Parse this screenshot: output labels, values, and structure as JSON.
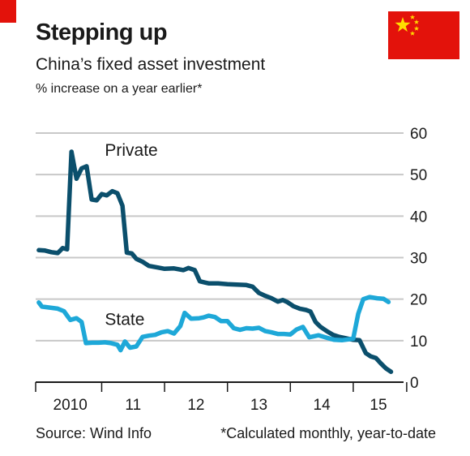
{
  "header": {
    "title": "Stepping up",
    "subtitle": "China’s fixed asset investment",
    "unit_note": "% increase on a year earlier*"
  },
  "flag": {
    "icon": "china-flag-icon",
    "field_color": "#e3120b",
    "star_color": "#ffde00"
  },
  "footer": {
    "source": "Source: Wind Info",
    "note": "*Calculated monthly, year-to-date"
  },
  "chart_data": {
    "type": "line",
    "title": "",
    "xlabel": "",
    "ylabel": "",
    "ylim": [
      0,
      60
    ],
    "xlim": [
      2009.95,
      2015.8
    ],
    "y_ticks": [
      0,
      10,
      20,
      30,
      40,
      50,
      60
    ],
    "x_tick_labels": [
      {
        "label": "2010",
        "x": 2010.5
      },
      {
        "label": "11",
        "x": 2011.5
      },
      {
        "label": "12",
        "x": 2012.5
      },
      {
        "label": "13",
        "x": 2013.5
      },
      {
        "label": "14",
        "x": 2014.5
      },
      {
        "label": "15",
        "x": 2015.4
      }
    ],
    "x_year_boundaries": [
      2011,
      2012,
      2013,
      2014,
      2015,
      2015.85
    ],
    "grid": true,
    "series": [
      {
        "name": "Private",
        "color": "#0b4f6c",
        "label_at": [
          2011.05,
          54.5
        ],
        "points": [
          [
            2010.0,
            31.8
          ],
          [
            2010.1,
            31.7
          ],
          [
            2010.2,
            31.3
          ],
          [
            2010.3,
            31.1
          ],
          [
            2010.38,
            32.3
          ],
          [
            2010.45,
            32.0
          ],
          [
            2010.52,
            55.5
          ],
          [
            2010.6,
            49.0
          ],
          [
            2010.68,
            51.5
          ],
          [
            2010.76,
            52.0
          ],
          [
            2010.84,
            44.0
          ],
          [
            2010.92,
            43.8
          ],
          [
            2011.0,
            45.3
          ],
          [
            2011.08,
            45.0
          ],
          [
            2011.17,
            46.0
          ],
          [
            2011.25,
            45.5
          ],
          [
            2011.33,
            42.5
          ],
          [
            2011.4,
            31.2
          ],
          [
            2011.48,
            31.0
          ],
          [
            2011.55,
            29.7
          ],
          [
            2011.65,
            29.0
          ],
          [
            2011.75,
            28.0
          ],
          [
            2011.9,
            27.6
          ],
          [
            2012.0,
            27.3
          ],
          [
            2012.15,
            27.4
          ],
          [
            2012.3,
            27.0
          ],
          [
            2012.38,
            27.5
          ],
          [
            2012.48,
            27.0
          ],
          [
            2012.56,
            24.3
          ],
          [
            2012.7,
            23.8
          ],
          [
            2012.85,
            23.8
          ],
          [
            2013.0,
            23.6
          ],
          [
            2013.15,
            23.5
          ],
          [
            2013.3,
            23.4
          ],
          [
            2013.4,
            23.0
          ],
          [
            2013.5,
            21.5
          ],
          [
            2013.6,
            20.8
          ],
          [
            2013.7,
            20.2
          ],
          [
            2013.8,
            19.4
          ],
          [
            2013.88,
            19.8
          ],
          [
            2013.95,
            19.3
          ],
          [
            2014.05,
            18.3
          ],
          [
            2014.15,
            17.7
          ],
          [
            2014.25,
            17.4
          ],
          [
            2014.32,
            17.0
          ],
          [
            2014.4,
            14.5
          ],
          [
            2014.48,
            13.3
          ],
          [
            2014.58,
            12.3
          ],
          [
            2014.68,
            11.4
          ],
          [
            2014.78,
            10.9
          ],
          [
            2014.88,
            10.6
          ],
          [
            2015.0,
            10.2
          ],
          [
            2015.1,
            10.1
          ],
          [
            2015.2,
            7.0
          ],
          [
            2015.28,
            6.2
          ],
          [
            2015.36,
            5.8
          ],
          [
            2015.44,
            4.5
          ],
          [
            2015.52,
            3.3
          ],
          [
            2015.6,
            2.5
          ]
        ]
      },
      {
        "name": "State",
        "color": "#1ea8d8",
        "label_at": [
          2011.05,
          13.8
        ],
        "points": [
          [
            2010.0,
            19.2
          ],
          [
            2010.05,
            18.2
          ],
          [
            2010.15,
            18.0
          ],
          [
            2010.3,
            17.7
          ],
          [
            2010.4,
            17.1
          ],
          [
            2010.5,
            15.0
          ],
          [
            2010.6,
            15.4
          ],
          [
            2010.68,
            14.5
          ],
          [
            2010.75,
            9.4
          ],
          [
            2010.85,
            9.5
          ],
          [
            2010.95,
            9.5
          ],
          [
            2011.05,
            9.6
          ],
          [
            2011.15,
            9.4
          ],
          [
            2011.25,
            9.0
          ],
          [
            2011.3,
            7.7
          ],
          [
            2011.37,
            9.8
          ],
          [
            2011.45,
            8.3
          ],
          [
            2011.55,
            8.6
          ],
          [
            2011.65,
            10.9
          ],
          [
            2011.75,
            11.2
          ],
          [
            2011.85,
            11.4
          ],
          [
            2011.95,
            12.0
          ],
          [
            2012.05,
            12.3
          ],
          [
            2012.15,
            11.7
          ],
          [
            2012.25,
            13.5
          ],
          [
            2012.32,
            16.7
          ],
          [
            2012.42,
            15.3
          ],
          [
            2012.55,
            15.4
          ],
          [
            2012.62,
            15.6
          ],
          [
            2012.7,
            16.0
          ],
          [
            2012.8,
            15.7
          ],
          [
            2012.9,
            14.7
          ],
          [
            2013.0,
            14.7
          ],
          [
            2013.1,
            13.0
          ],
          [
            2013.2,
            12.6
          ],
          [
            2013.3,
            13.0
          ],
          [
            2013.4,
            12.9
          ],
          [
            2013.5,
            13.1
          ],
          [
            2013.6,
            12.3
          ],
          [
            2013.7,
            12.0
          ],
          [
            2013.8,
            11.6
          ],
          [
            2013.9,
            11.6
          ],
          [
            2014.0,
            11.5
          ],
          [
            2014.1,
            12.7
          ],
          [
            2014.2,
            13.3
          ],
          [
            2014.3,
            10.8
          ],
          [
            2014.45,
            11.3
          ],
          [
            2014.58,
            10.7
          ],
          [
            2014.7,
            10.2
          ],
          [
            2014.82,
            10.1
          ],
          [
            2014.92,
            10.3
          ],
          [
            2015.0,
            10.5
          ],
          [
            2015.08,
            16.5
          ],
          [
            2015.16,
            20.0
          ],
          [
            2015.26,
            20.5
          ],
          [
            2015.38,
            20.2
          ],
          [
            2015.48,
            20.1
          ],
          [
            2015.56,
            19.3
          ]
        ]
      }
    ]
  }
}
